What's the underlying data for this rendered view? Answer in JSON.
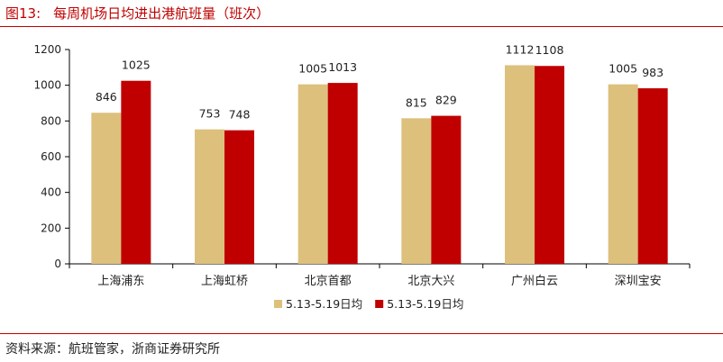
{
  "figure": {
    "number": "图13:",
    "title": "每周机场日均进出港航班量（班次）",
    "source": "资料来源：航班管家，浙商证券研究所"
  },
  "chart_data": {
    "type": "bar",
    "categories": [
      "上海浦东",
      "上海虹桥",
      "北京首都",
      "北京大兴",
      "广州白云",
      "深圳宝安"
    ],
    "series": [
      {
        "name": "5.13-5.19日均",
        "color": "#dcc07c",
        "values": [
          846,
          753,
          1005,
          815,
          1112,
          1005
        ]
      },
      {
        "name": "5.13-5.19日均",
        "color": "#c00000",
        "values": [
          1025,
          748,
          1013,
          829,
          1108,
          983
        ]
      }
    ],
    "ylim": [
      0,
      1200
    ],
    "yticks": [
      0,
      200,
      400,
      600,
      800,
      1000,
      1200
    ],
    "data_labels": true,
    "grid": false,
    "legend": "bottom"
  }
}
